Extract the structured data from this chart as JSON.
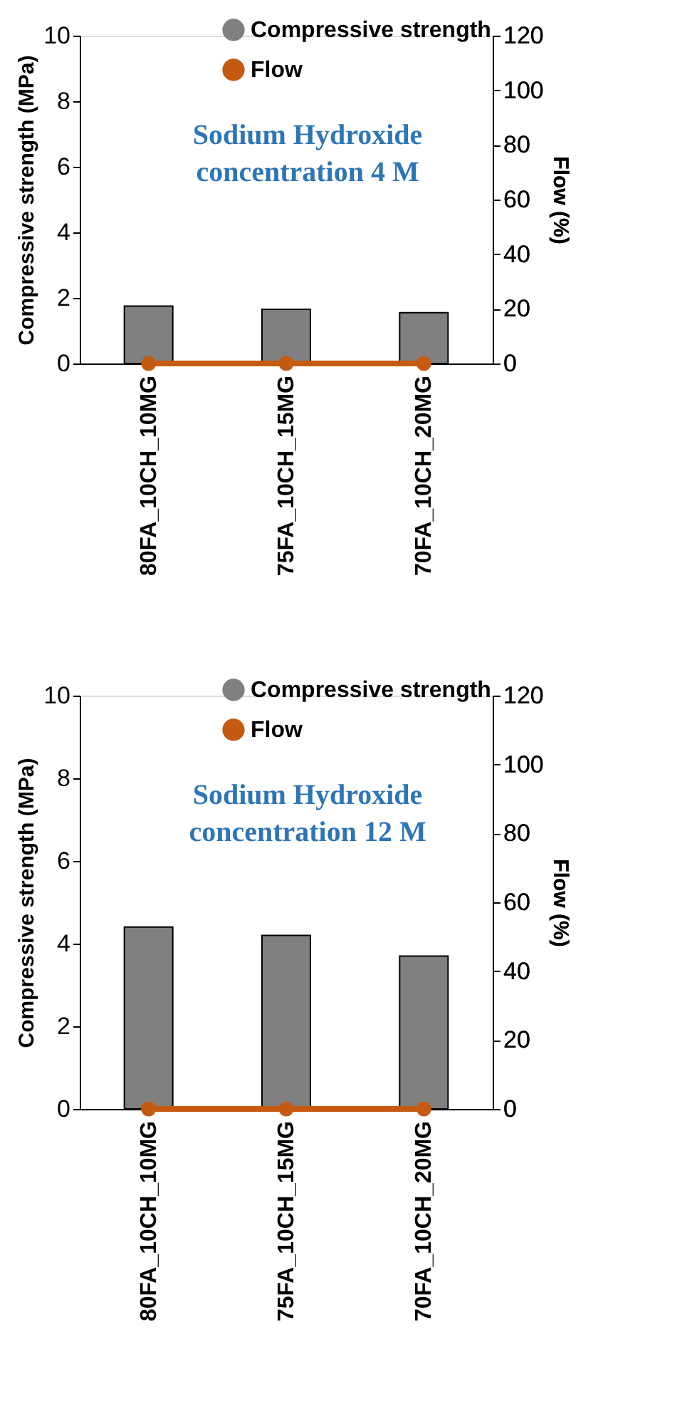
{
  "chart_data": [
    {
      "type": "bar",
      "categories": [
        "80FA_10CH_10MG",
        "75FA_10CH_15MG",
        "70FA_10CH_20MG"
      ],
      "ylabel": "Compressive strength (MPa)",
      "y2label": "Flow (%)",
      "ylim": [
        0,
        10
      ],
      "yticks": [
        0,
        2,
        4,
        6,
        8,
        10
      ],
      "y2lim": [
        0,
        120
      ],
      "y2ticks": [
        0,
        20,
        40,
        60,
        80,
        100,
        120
      ],
      "grid": false,
      "legend": "top",
      "annotations": [
        "Sodium Hydroxide\nconcentration 4 M"
      ],
      "series": [
        {
          "name": "Compressive strength",
          "color": "#808080",
          "values": [
            1.75,
            1.65,
            1.55
          ]
        },
        {
          "name": "Flow",
          "type": "line",
          "axis": "y2",
          "color": "#c55a11",
          "marker": "circle",
          "values": [
            0,
            0,
            0
          ]
        }
      ]
    },
    {
      "type": "bar",
      "categories": [
        "80FA_10CH_10MG",
        "75FA_10CH_15MG",
        "70FA_10CH_20MG"
      ],
      "ylabel": "Compressive strength (MPa)",
      "y2label": "Flow (%)",
      "ylim": [
        0,
        10
      ],
      "yticks": [
        0,
        2,
        4,
        6,
        8,
        10
      ],
      "y2lim": [
        0,
        120
      ],
      "y2ticks": [
        0,
        20,
        40,
        60,
        80,
        100,
        120
      ],
      "grid": false,
      "legend": "top",
      "annotations": [
        "Sodium Hydroxide\nconcentration 12 M"
      ],
      "series": [
        {
          "name": "Compressive strength",
          "color": "#808080",
          "values": [
            4.4,
            4.2,
            3.7
          ]
        },
        {
          "name": "Flow",
          "type": "line",
          "axis": "y2",
          "color": "#c55a11",
          "marker": "circle",
          "values": [
            0,
            0,
            0
          ]
        }
      ]
    }
  ]
}
